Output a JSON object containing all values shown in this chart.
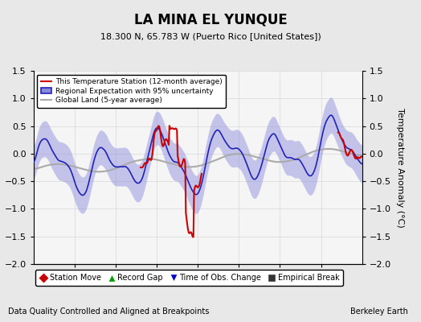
{
  "title": "LA MINA EL YUNQUE",
  "subtitle": "18.300 N, 65.783 W (Puerto Rico [United States])",
  "xlabel_bottom": "Data Quality Controlled and Aligned at Breakpoints",
  "xlabel_right": "Berkeley Earth",
  "ylabel": "Temperature Anomaly (°C)",
  "xlim": [
    1920,
    1960
  ],
  "ylim": [
    -2,
    1.5
  ],
  "yticks": [
    -2,
    -1.5,
    -1,
    -0.5,
    0,
    0.5,
    1,
    1.5
  ],
  "xticks": [
    1925,
    1930,
    1935,
    1940,
    1945,
    1950,
    1955
  ],
  "bg_color": "#e8e8e8",
  "plot_bg_color": "#f5f5f5",
  "legend_labels": [
    "This Temperature Station (12-month average)",
    "Regional Expectation with 95% uncertainty",
    "Global Land (5-year average)"
  ],
  "legend_colors": [
    "#cc0000",
    "#3333cc",
    "#aaaaaa"
  ],
  "marker_labels": [
    "Station Move",
    "Record Gap",
    "Time of Obs. Change",
    "Empirical Break"
  ],
  "marker_colors": [
    "#cc0000",
    "#009900",
    "#0000cc",
    "#333333"
  ],
  "marker_shapes": [
    "D",
    "^",
    "v",
    "s"
  ]
}
